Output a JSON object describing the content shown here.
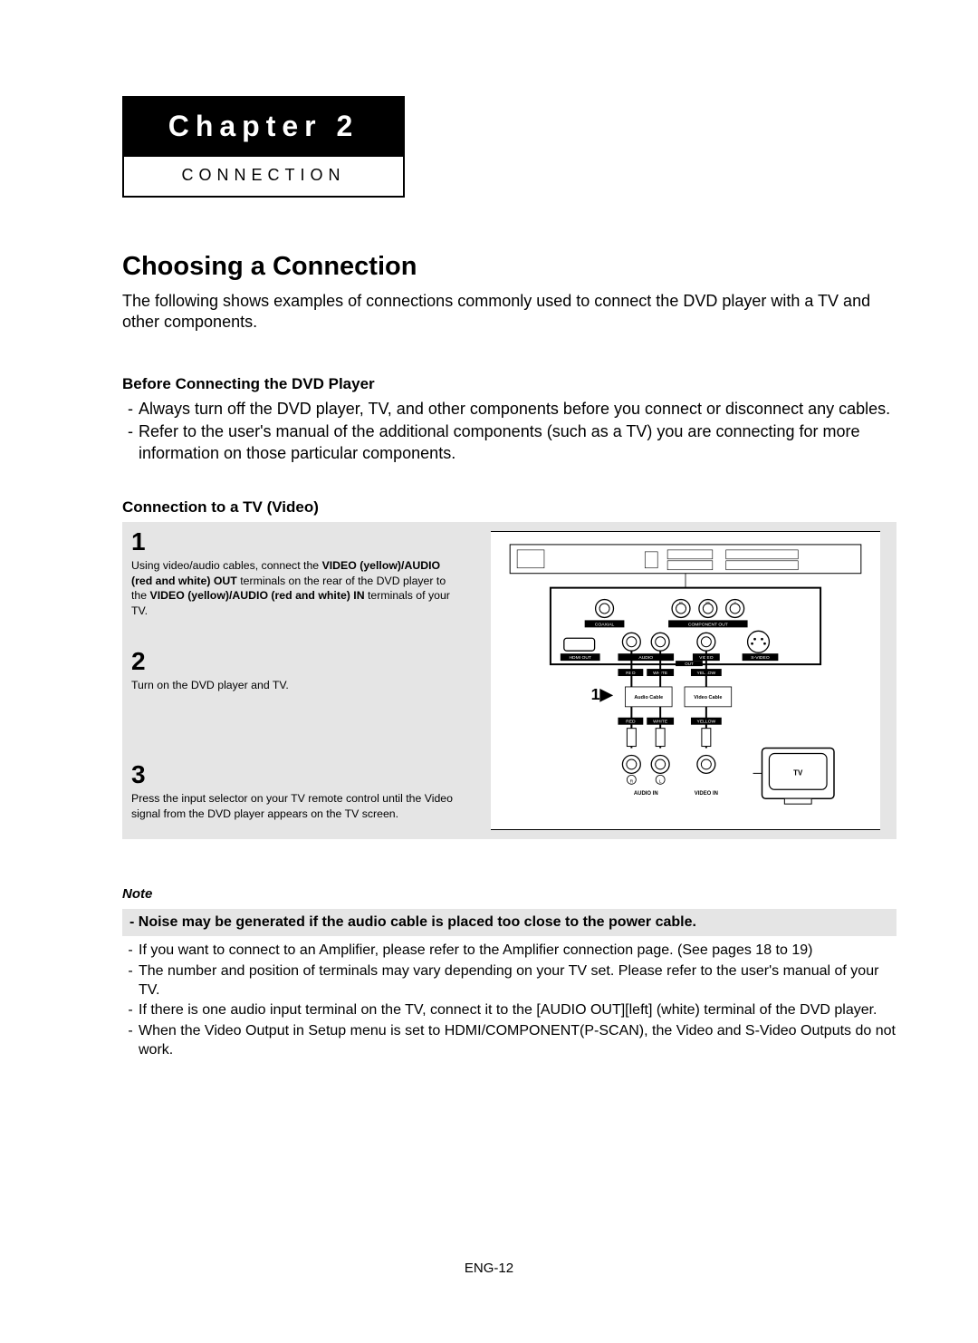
{
  "colors": {
    "page_bg": "#ffffff",
    "text": "#000000",
    "chapter_bg": "#000000",
    "chapter_text": "#ffffff",
    "grey_panel": "#e5e5e5"
  },
  "chapter": {
    "title": "Chapter 2",
    "subtitle": "CONNECTION"
  },
  "section": {
    "title": "Choosing a Connection",
    "intro": "The following shows examples of connections commonly used to connect the DVD player with a TV and other components."
  },
  "before": {
    "heading": "Before Connecting the DVD Player",
    "items": [
      "Always turn off the DVD player, TV, and other components before you connect or disconnect any cables.",
      "Refer to the user's manual of the additional components (such as a TV) you are connecting for more information on those particular components."
    ]
  },
  "connection_tv": {
    "heading": "Connection to a TV (Video)",
    "steps": [
      {
        "num": "1",
        "parts": [
          {
            "t": "Using video/audio cables, connect the ",
            "b": false
          },
          {
            "t": "VIDEO (yellow)/AUDIO (red and white) OUT",
            "b": true
          },
          {
            "t": " terminals on the rear of the DVD player to the ",
            "b": false
          },
          {
            "t": "VIDEO (yellow)/AUDIO (red and white) IN",
            "b": true
          },
          {
            "t": " terminals of your TV.",
            "b": false
          }
        ]
      },
      {
        "num": "2",
        "parts": [
          {
            "t": "Turn on the DVD player and TV.",
            "b": false
          }
        ]
      },
      {
        "num": "3",
        "parts": [
          {
            "t": "Press the input selector on your TV remote control until the Video signal from the DVD player appears on the TV screen.",
            "b": false
          }
        ]
      }
    ]
  },
  "diagram": {
    "labels": {
      "coaxial": "COAXIAL",
      "component_out": "COMPONENT OUT",
      "hdmi_out": "HDMI OUT",
      "audio": "AUDIO",
      "out": "OUT",
      "video": "VIDEO",
      "svideo": "S-VIDEO",
      "red": "RED",
      "white": "WHITE",
      "yellow": "YELLOW",
      "audio_cable": "Audio Cable",
      "video_cable": "Video Cable",
      "audio_in": "AUDIO IN",
      "video_in": "VIDEO IN",
      "tv": "TV",
      "r": "R",
      "l": "L",
      "one_arrow": "1▶"
    }
  },
  "note": {
    "heading": "Note",
    "bold_line": "- Noise may be generated if the audio cable is placed too close to the power cable.",
    "items": [
      "If you want to connect to an Amplifier, please refer to the Amplifier connection page. (See pages 18 to 19)",
      "The number and position of terminals may vary depending on your TV set. Please refer to the user's manual of your TV.",
      "If there is one audio input terminal on the TV, connect it to the [AUDIO OUT][left] (white) terminal of the DVD player.",
      "When the Video Output in Setup menu is set to HDMI/COMPONENT(P-SCAN), the Video and S-Video Outputs do not work."
    ]
  },
  "footer": "ENG-12"
}
